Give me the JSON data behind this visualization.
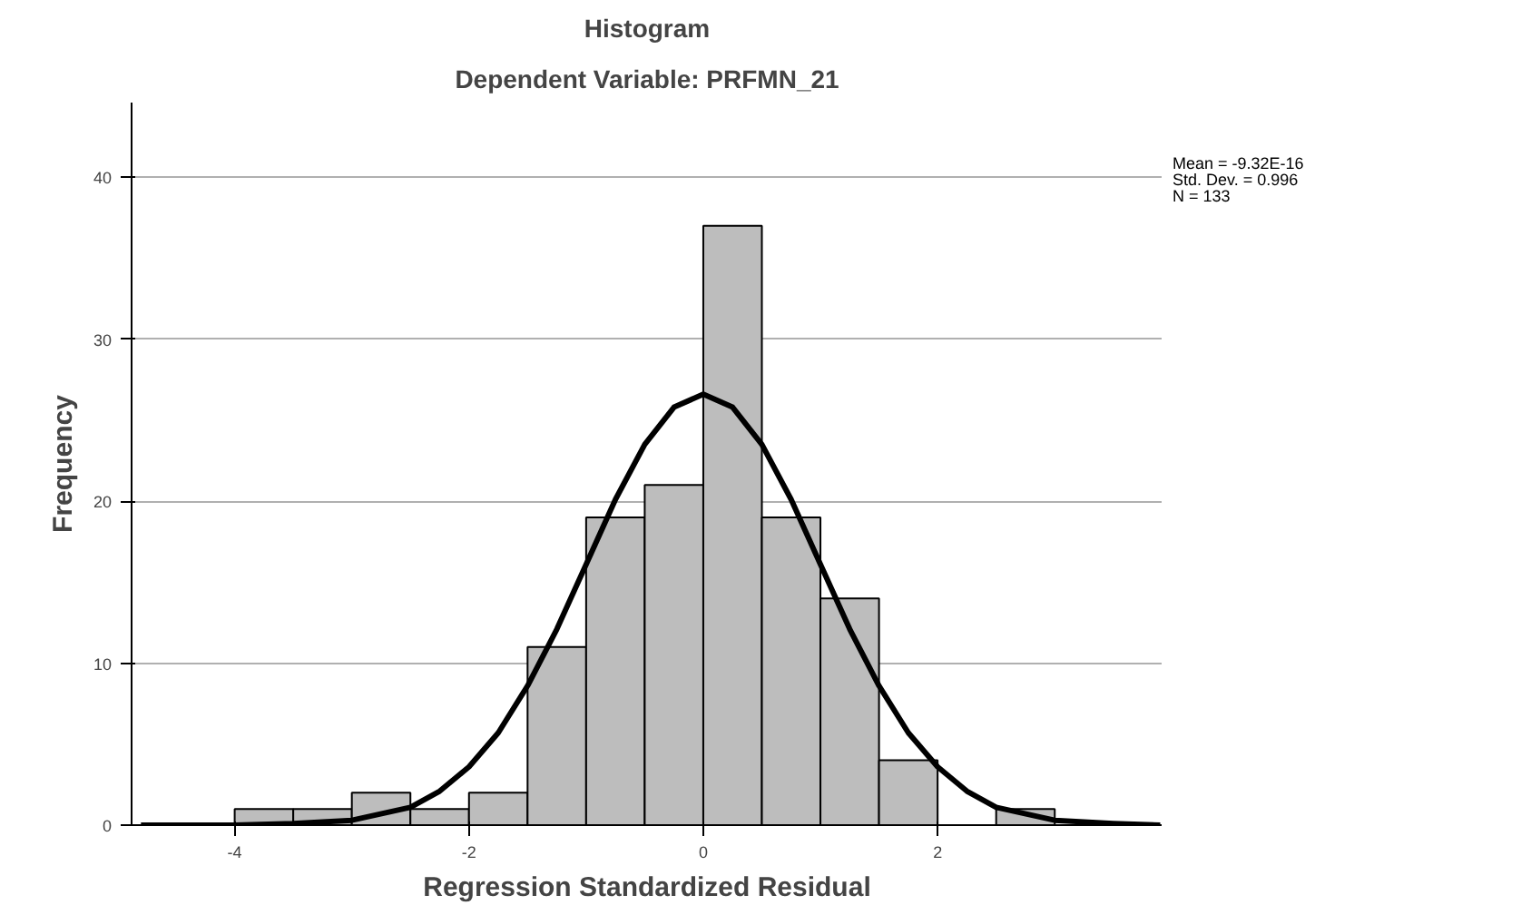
{
  "chart_data": {
    "type": "histogram",
    "title": "Histogram",
    "subtitle": "Dependent Variable: PRFMN_21",
    "xlabel": "Regression Standardized Residual",
    "ylabel": "Frequency",
    "bins": [
      -4,
      -3.5,
      -3,
      -2.5,
      -2,
      -1.5,
      -1,
      -0.5,
      0,
      0.5,
      1,
      1.5,
      2,
      2.5,
      3
    ],
    "values": [
      1,
      1,
      2,
      1,
      2,
      11,
      19,
      21,
      37,
      19,
      14,
      4,
      0,
      1
    ],
    "color": "#bdbdbd",
    "series": [
      {
        "type": "line",
        "color": "#000000",
        "x": [
          -4.8,
          -4,
          -3.5,
          -3,
          -2.5,
          -2.25,
          -2,
          -1.75,
          -1.5,
          -1.25,
          -1,
          -0.75,
          -0.5,
          -0.25,
          0,
          0.25,
          0.5,
          0.75,
          1,
          1.25,
          1.5,
          1.75,
          2,
          2.25,
          2.5,
          3,
          3.5,
          3.9
        ],
        "values": [
          0,
          0,
          0.1,
          0.3,
          1.1,
          2.1,
          3.6,
          5.7,
          8.6,
          12.1,
          16.1,
          20.1,
          23.5,
          25.8,
          26.6,
          25.8,
          23.5,
          20.1,
          16.1,
          12.1,
          8.6,
          5.7,
          3.6,
          2.1,
          1.1,
          0.3,
          0.1,
          0
        ]
      }
    ],
    "annotations": [
      "Mean = -9.32E-16",
      "Std. Dev. = 0.996",
      "N = 133"
    ],
    "xlim": [
      -4.88,
      3.92
    ],
    "ylim": [
      0,
      44.6
    ],
    "xticks": [
      -4,
      -2,
      0,
      2
    ],
    "yticks": [
      0,
      10,
      20,
      30,
      40
    ],
    "grid": "y"
  }
}
